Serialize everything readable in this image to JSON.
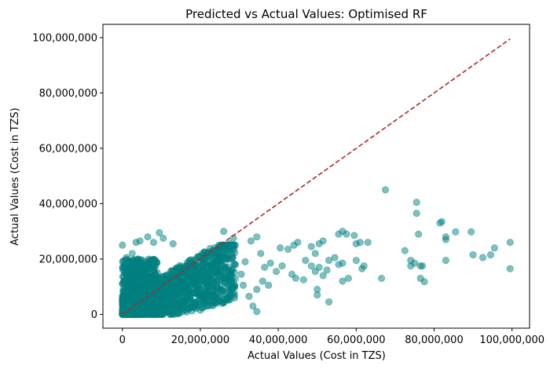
{
  "chart_data": {
    "type": "scatter",
    "title": "Predicted vs Actual Values: Optimised RF",
    "xlabel": "Actual Values (Cost in TZS)",
    "ylabel": "Actual Values (Cost in TZS)",
    "xlim": [
      -5000000,
      104500000
    ],
    "ylim": [
      -5000000,
      104800000
    ],
    "xticks": [
      0,
      20000000,
      40000000,
      60000000,
      80000000,
      100000000
    ],
    "xtick_labels": [
      "0",
      "20,000,000",
      "40,000,000",
      "60,000,000",
      "80,000,000",
      "100,000,000"
    ],
    "yticks": [
      0,
      20000000,
      40000000,
      60000000,
      80000000,
      100000000
    ],
    "ytick_labels": [
      "0",
      "20,000,000",
      "40,000,000",
      "60,000,000",
      "80,000,000",
      "100,000,000"
    ],
    "grid": false,
    "point_color": "#008080",
    "point_alpha": 0.5,
    "reference_line": {
      "from": [
        0,
        0
      ],
      "to": [
        99500000,
        99500000
      ],
      "color": "#a52a2a",
      "style": "dashed"
    },
    "dense_cluster_note": "thousands of overlapping points between x 0–30,000,000 and y 0–25,000,000",
    "points": [
      [
        67500000,
        45000000
      ],
      [
        75500000,
        40500000
      ],
      [
        75500000,
        36500000
      ],
      [
        81500000,
        33000000
      ],
      [
        82000000,
        33500000
      ],
      [
        85500000,
        29800000
      ],
      [
        89500000,
        29800000
      ],
      [
        83000000,
        28000000
      ],
      [
        83000000,
        27000000
      ],
      [
        76000000,
        29000000
      ],
      [
        99500000,
        26000000
      ],
      [
        95500000,
        24000000
      ],
      [
        94500000,
        21500000
      ],
      [
        92500000,
        20500000
      ],
      [
        90000000,
        21500000
      ],
      [
        83000000,
        19500000
      ],
      [
        72500000,
        23000000
      ],
      [
        74000000,
        19500000
      ],
      [
        75000000,
        18500000
      ],
      [
        76500000,
        17500000
      ],
      [
        77000000,
        17500000
      ],
      [
        74000000,
        17500000
      ],
      [
        76500000,
        13000000
      ],
      [
        77500000,
        11800000
      ],
      [
        99500000,
        16500000
      ],
      [
        66500000,
        13000000
      ],
      [
        61500000,
        16500000
      ],
      [
        62000000,
        17500000
      ],
      [
        60000000,
        19500000
      ],
      [
        61000000,
        26000000
      ],
      [
        59500000,
        28500000
      ],
      [
        60000000,
        25500000
      ],
      [
        63000000,
        26000000
      ],
      [
        57500000,
        29000000
      ],
      [
        56500000,
        30000000
      ],
      [
        55500000,
        29000000
      ],
      [
        53000000,
        19500000
      ],
      [
        54500000,
        20500000
      ],
      [
        55500000,
        18000000
      ],
      [
        56500000,
        18500000
      ],
      [
        58000000,
        13000000
      ],
      [
        56500000,
        12000000
      ],
      [
        53000000,
        4500000
      ],
      [
        50000000,
        7000000
      ],
      [
        50000000,
        9000000
      ],
      [
        51500000,
        14000000
      ],
      [
        52500000,
        16000000
      ],
      [
        50500000,
        17000000
      ],
      [
        49500000,
        15500000
      ],
      [
        48500000,
        17500000
      ],
      [
        49500000,
        22000000
      ],
      [
        50500000,
        25500000
      ],
      [
        51500000,
        26500000
      ],
      [
        48500000,
        24500000
      ],
      [
        47000000,
        19500000
      ],
      [
        45000000,
        26000000
      ],
      [
        44000000,
        25000000
      ],
      [
        42500000,
        23500000
      ],
      [
        40500000,
        24000000
      ],
      [
        38000000,
        18500000
      ],
      [
        36500000,
        17000000
      ],
      [
        39500000,
        15500000
      ],
      [
        41000000,
        17500000
      ],
      [
        43500000,
        14500000
      ],
      [
        44500000,
        13000000
      ],
      [
        46500000,
        12500000
      ],
      [
        37500000,
        10500000
      ],
      [
        36000000,
        12000000
      ],
      [
        34500000,
        28000000
      ],
      [
        33000000,
        26500000
      ],
      [
        35500000,
        22000000
      ],
      [
        34500000,
        9000000
      ],
      [
        33500000,
        3000000
      ],
      [
        34500000,
        1000000
      ],
      [
        32500000,
        6500000
      ],
      [
        31000000,
        10500000
      ],
      [
        30500000,
        14500000
      ],
      [
        29000000,
        18000000
      ],
      [
        31500000,
        19000000
      ],
      [
        26000000,
        30000000
      ],
      [
        28500000,
        27500000
      ],
      [
        27500000,
        25500000
      ],
      [
        26000000,
        24500000
      ],
      [
        24500000,
        22000000
      ],
      [
        25500000,
        10500000
      ],
      [
        26500000,
        7000000
      ],
      [
        23500000,
        5000000
      ],
      [
        22000000,
        3000000
      ],
      [
        20000000,
        1500000
      ],
      [
        21500000,
        8000000
      ],
      [
        19000000,
        10000000
      ],
      [
        18500000,
        12500000
      ],
      [
        17500000,
        14000000
      ],
      [
        16000000,
        9500000
      ],
      [
        15000000,
        6000000
      ],
      [
        14000000,
        3500000
      ],
      [
        12000000,
        1500000
      ],
      [
        11500000,
        6000000
      ],
      [
        13000000,
        25500000
      ],
      [
        10500000,
        27500000
      ],
      [
        9500000,
        29500000
      ],
      [
        8000000,
        26000000
      ],
      [
        6500000,
        28000000
      ],
      [
        4500000,
        26500000
      ],
      [
        3500000,
        26000000
      ],
      [
        0,
        25000000
      ],
      [
        2500000,
        22000000
      ],
      [
        1000000,
        20500000
      ],
      [
        4000000,
        20000000
      ],
      [
        5500000,
        14000000
      ],
      [
        6500000,
        4500000
      ],
      [
        8500000,
        2000000
      ],
      [
        9500000,
        1000000
      ],
      [
        7500000,
        1000000
      ],
      [
        4500000,
        500000
      ],
      [
        2500000,
        500000
      ],
      [
        1000000,
        1000000
      ],
      [
        3500000,
        9000000
      ],
      [
        2000000,
        13000000
      ],
      [
        0,
        11000000
      ]
    ]
  }
}
